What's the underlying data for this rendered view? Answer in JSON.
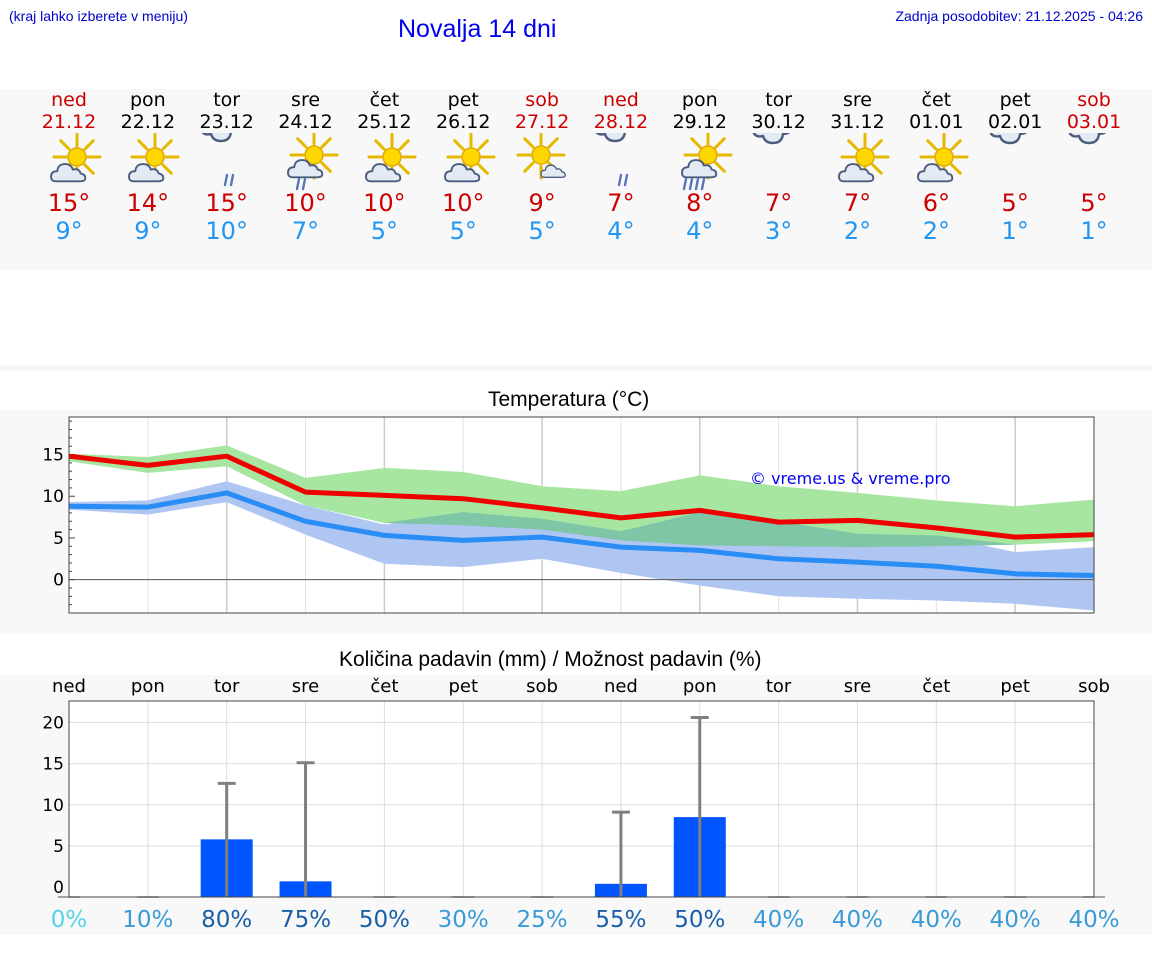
{
  "header": {
    "hint": "(kraj lahko izberete v meniju)",
    "title": "Novalja 14 dni",
    "updated": "Zadnja posodobitev: 21.12.2025 - 04:26"
  },
  "colors": {
    "weekend": "#cc0000",
    "weekday": "#000000",
    "tmax": "#cc0000",
    "tmin": "#2196f3"
  },
  "days": [
    {
      "name": "ned",
      "date": "21.12",
      "weekend": true,
      "icon": "sun-cloud-icon",
      "tmax": "15°",
      "tmin": "9°"
    },
    {
      "name": "pon",
      "date": "22.12",
      "weekend": false,
      "icon": "sun-cloud-icon",
      "tmax": "14°",
      "tmin": "9°"
    },
    {
      "name": "tor",
      "date": "23.12",
      "weekend": false,
      "icon": "cloud-rain-icon",
      "tmax": "15°",
      "tmin": "10°"
    },
    {
      "name": "sre",
      "date": "24.12",
      "weekend": false,
      "icon": "sun-cloud-rain-icon",
      "tmax": "10°",
      "tmin": "7°"
    },
    {
      "name": "čet",
      "date": "25.12",
      "weekend": false,
      "icon": "sun-cloud-icon",
      "tmax": "10°",
      "tmin": "5°"
    },
    {
      "name": "pet",
      "date": "26.12",
      "weekend": false,
      "icon": "sun-cloud-icon",
      "tmax": "10°",
      "tmin": "5°"
    },
    {
      "name": "sob",
      "date": "27.12",
      "weekend": true,
      "icon": "sun-small-cloud-icon",
      "tmax": "9°",
      "tmin": "5°"
    },
    {
      "name": "ned",
      "date": "28.12",
      "weekend": true,
      "icon": "cloud-rain-icon",
      "tmax": "7°",
      "tmin": "4°"
    },
    {
      "name": "pon",
      "date": "29.12",
      "weekend": false,
      "icon": "sun-cloud-heavy-rain-icon",
      "tmax": "8°",
      "tmin": "4°"
    },
    {
      "name": "tor",
      "date": "30.12",
      "weekend": false,
      "icon": "cloud-icon",
      "tmax": "7°",
      "tmin": "3°"
    },
    {
      "name": "sre",
      "date": "31.12",
      "weekend": false,
      "icon": "sun-cloud-icon",
      "tmax": "7°",
      "tmin": "2°"
    },
    {
      "name": "čet",
      "date": "01.01",
      "weekend": false,
      "icon": "sun-cloud-icon",
      "tmax": "6°",
      "tmin": "2°"
    },
    {
      "name": "pet",
      "date": "02.01",
      "weekend": false,
      "icon": "cloud-icon",
      "tmax": "5°",
      "tmin": "1°"
    },
    {
      "name": "sob",
      "date": "03.01",
      "weekend": true,
      "icon": "cloud-icon",
      "tmax": "5°",
      "tmin": "1°"
    }
  ],
  "chart_data": [
    {
      "type": "line",
      "title": "Temperatura (°C)",
      "watermark": "© vreme.us & vreme.pro",
      "yticks": [
        0,
        5,
        10,
        15
      ],
      "ylim": [
        -4,
        19.5
      ],
      "colors": {
        "max": "#ee0000",
        "min": "#2a8cf5",
        "max_band": "#a6e6a0",
        "min_band": "#b0c6f2",
        "overlap": "#7fc6a6"
      },
      "series": [
        {
          "name": "max",
          "values": [
            14.8,
            13.7,
            14.8,
            10.5,
            10.1,
            9.7,
            8.6,
            7.4,
            8.3,
            6.9,
            7.1,
            6.2,
            5.1,
            5.4
          ],
          "low": [
            14.2,
            12.8,
            13.6,
            8.9,
            6.8,
            6.5,
            6.0,
            4.7,
            4.1,
            4.0,
            3.9,
            4.0,
            4.2,
            4.6
          ],
          "high": [
            15.1,
            14.7,
            16.1,
            12.2,
            13.4,
            12.9,
            11.2,
            10.6,
            12.5,
            11.2,
            10.4,
            9.5,
            8.8,
            9.6
          ]
        },
        {
          "name": "min",
          "values": [
            8.8,
            8.7,
            10.4,
            7.0,
            5.3,
            4.7,
            5.1,
            3.9,
            3.5,
            2.5,
            2.1,
            1.6,
            0.7,
            0.5
          ],
          "low": [
            8.4,
            7.8,
            9.3,
            5.4,
            1.9,
            1.5,
            2.5,
            0.8,
            -0.7,
            -2.0,
            -2.3,
            -2.5,
            -2.9,
            -3.7
          ],
          "high": [
            9.3,
            9.5,
            11.8,
            8.9,
            6.6,
            8.1,
            7.3,
            5.8,
            8.1,
            7.0,
            5.5,
            5.3,
            3.3,
            3.9
          ]
        }
      ]
    },
    {
      "type": "bar",
      "title": "Količina padavin (mm) / Možnost padavin (%)",
      "categories": [
        "ned",
        "pon",
        "tor",
        "sre",
        "čet",
        "pet",
        "sob",
        "ned",
        "pon",
        "tor",
        "sre",
        "čet",
        "pet",
        "sob"
      ],
      "values": [
        0,
        0,
        5.8,
        0.7,
        0,
        0,
        0,
        0.4,
        8.5,
        0,
        0,
        0,
        0,
        0
      ],
      "error_high": [
        0,
        0,
        12.6,
        15.1,
        0,
        0,
        0,
        9.1,
        20.6,
        0,
        0,
        0,
        0,
        0
      ],
      "probability": [
        "0%",
        "10%",
        "80%",
        "75%",
        "50%",
        "30%",
        "25%",
        "55%",
        "50%",
        "40%",
        "40%",
        "40%",
        "40%",
        "40%"
      ],
      "probability_colors": [
        "#55d4e6",
        "#3a9ad6",
        "#1a5fa8",
        "#1a5fa8",
        "#1a5fa8",
        "#3a9ad6",
        "#3a9ad6",
        "#1a5fa8",
        "#1a5fa8",
        "#3a9ad6",
        "#3a9ad6",
        "#3a9ad6",
        "#3a9ad6",
        "#3a9ad6"
      ],
      "yticks": [
        0,
        5,
        10,
        15,
        20
      ],
      "ylim": [
        -1.2,
        22.6
      ],
      "colors": {
        "bar": "#0055ff",
        "error": "#808080"
      }
    }
  ]
}
